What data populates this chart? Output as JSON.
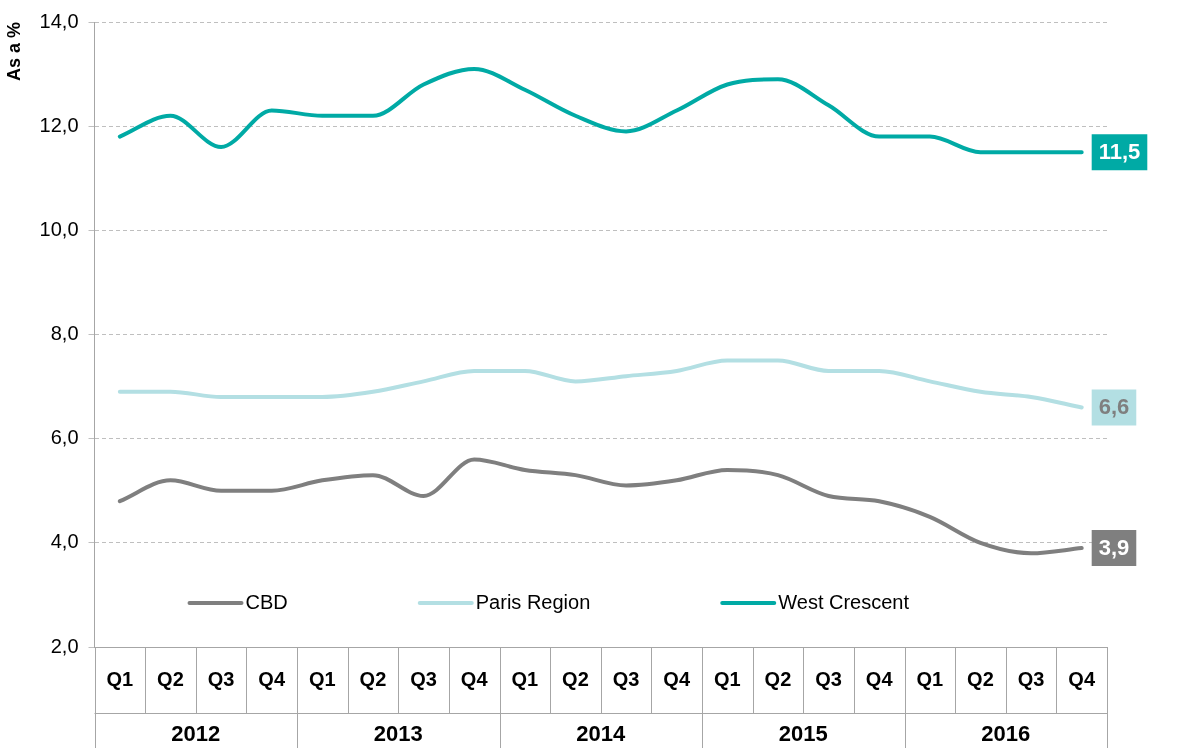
{
  "chart_data": {
    "type": "line",
    "ylabel": "As a %",
    "categories": [
      "Q1",
      "Q2",
      "Q3",
      "Q4",
      "Q1",
      "Q2",
      "Q3",
      "Q4",
      "Q1",
      "Q2",
      "Q3",
      "Q4",
      "Q1",
      "Q2",
      "Q3",
      "Q4",
      "Q1",
      "Q2",
      "Q3",
      "Q4"
    ],
    "annotations": [
      "2012",
      "2013",
      "2014",
      "2015",
      "2016"
    ],
    "series": [
      {
        "name": "CBD",
        "color": "#7f7f7f",
        "values": [
          4.8,
          5.2,
          5.0,
          5.0,
          5.2,
          5.3,
          4.9,
          5.6,
          5.4,
          5.3,
          5.1,
          5.2,
          5.4,
          5.3,
          4.9,
          4.8,
          4.5,
          4.0,
          3.8,
          3.9
        ],
        "value_labels": [
          null,
          null,
          null,
          null,
          null,
          null,
          null,
          null,
          null,
          null,
          null,
          null,
          null,
          null,
          null,
          null,
          null,
          null,
          null,
          "3,9"
        ]
      },
      {
        "name": "Paris Region",
        "color": "#b3dfe3",
        "values": [
          6.9,
          6.9,
          6.8,
          6.8,
          6.8,
          6.9,
          7.1,
          7.3,
          7.3,
          7.1,
          7.2,
          7.3,
          7.5,
          7.5,
          7.3,
          7.3,
          7.1,
          6.9,
          6.8,
          6.6
        ],
        "value_labels": [
          null,
          null,
          null,
          null,
          null,
          null,
          null,
          null,
          null,
          null,
          null,
          null,
          null,
          null,
          null,
          null,
          null,
          null,
          null,
          "6,6"
        ]
      },
      {
        "name": "West Crescent",
        "color": "#00aaa5",
        "values": [
          11.8,
          12.2,
          11.6,
          12.3,
          12.2,
          12.2,
          12.8,
          13.1,
          12.7,
          12.2,
          11.9,
          12.3,
          12.8,
          12.9,
          12.4,
          11.8,
          11.8,
          11.5,
          11.5,
          11.5
        ],
        "value_labels": [
          null,
          null,
          null,
          null,
          null,
          null,
          null,
          null,
          null,
          null,
          null,
          null,
          null,
          null,
          null,
          null,
          null,
          null,
          null,
          "11,5"
        ]
      }
    ],
    "ylim": [
      2,
      14
    ],
    "yticks": [
      {
        "value": 2,
        "label": "2,0"
      },
      {
        "value": 4,
        "label": "4,0"
      },
      {
        "value": 6,
        "label": "6,0"
      },
      {
        "value": 8,
        "label": "8,0"
      },
      {
        "value": 10,
        "label": "10,0"
      },
      {
        "value": 12,
        "label": "12,0"
      },
      {
        "value": 14,
        "label": "14,0"
      }
    ],
    "grid": "y",
    "legend": "bottom left",
    "marker": "none",
    "line_style": "solid"
  }
}
